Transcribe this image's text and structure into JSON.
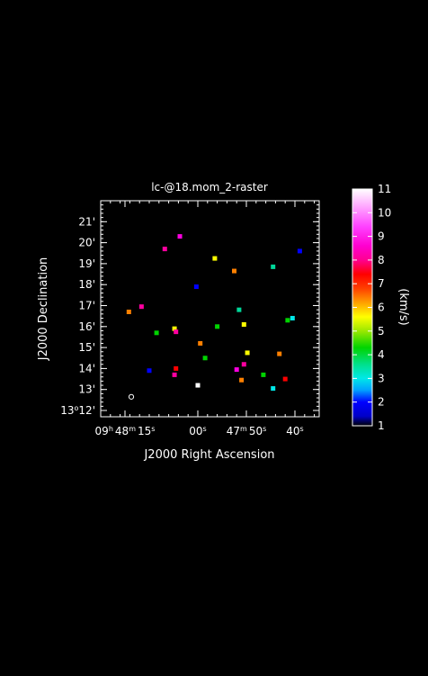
{
  "chart_data": {
    "type": "heatmap",
    "title": "lc-@18.mom_2-raster",
    "xlabel": "J2000 Right Ascension",
    "ylabel": "J2000 Declination",
    "x_ticks": [
      {
        "value": 15,
        "main": "09",
        "main_sup": "h",
        "mid": "48",
        "mid_sup": "m",
        "sec": "15",
        "sec_sup": "s"
      },
      {
        "value": 0,
        "main": "",
        "main_sup": "",
        "mid": "",
        "mid_sup": "",
        "sec": "00",
        "sec_sup": "s"
      },
      {
        "value": -10,
        "main": "",
        "main_sup": "",
        "mid": "47",
        "mid_sup": "m",
        "sec": "50",
        "sec_sup": "s"
      },
      {
        "value": -20,
        "main": "",
        "main_sup": "",
        "mid": "",
        "mid_sup": "",
        "sec": "40",
        "sec_sup": "s"
      }
    ],
    "x_range": [
      20,
      -25
    ],
    "y_ticks": [
      {
        "value": 12,
        "deg": "13",
        "deg_sup": "o",
        "min": "12'"
      },
      {
        "value": 13,
        "deg": "",
        "deg_sup": "",
        "min": "13'"
      },
      {
        "value": 14,
        "deg": "",
        "deg_sup": "",
        "min": "14'"
      },
      {
        "value": 15,
        "deg": "",
        "deg_sup": "",
        "min": "15'"
      },
      {
        "value": 16,
        "deg": "",
        "deg_sup": "",
        "min": "16'"
      },
      {
        "value": 17,
        "deg": "",
        "deg_sup": "",
        "min": "17'"
      },
      {
        "value": 18,
        "deg": "",
        "deg_sup": "",
        "min": "18'"
      },
      {
        "value": 19,
        "deg": "",
        "deg_sup": "",
        "min": "19'"
      },
      {
        "value": 20,
        "deg": "",
        "deg_sup": "",
        "min": "20'"
      },
      {
        "value": 21,
        "deg": "",
        "deg_sup": "",
        "min": "21'"
      }
    ],
    "y_range": [
      11.7,
      22.0
    ],
    "colorbar": {
      "label": "(km/s)",
      "range": [
        1,
        11
      ],
      "ticks": [
        "1",
        "2",
        "3",
        "4",
        "5",
        "6",
        "7",
        "8",
        "9",
        "10",
        "11"
      ]
    },
    "points": [
      {
        "x": 3.7,
        "y": 20.3,
        "v": 9
      },
      {
        "x": 6.8,
        "y": 19.7,
        "v": 8
      },
      {
        "x": -3.5,
        "y": 19.25,
        "v": 5
      },
      {
        "x": -7.5,
        "y": 18.65,
        "v": 6
      },
      {
        "x": -15.5,
        "y": 18.85,
        "v": 3
      },
      {
        "x": -21.0,
        "y": 19.6,
        "v": 1
      },
      {
        "x": 0.3,
        "y": 17.9,
        "v": 1
      },
      {
        "x": 11.6,
        "y": 16.95,
        "v": 8
      },
      {
        "x": 14.2,
        "y": 16.7,
        "v": 6
      },
      {
        "x": 8.5,
        "y": 15.7,
        "v": 4
      },
      {
        "x": 4.8,
        "y": 15.9,
        "v": 5
      },
      {
        "x": 4.5,
        "y": 15.75,
        "v": 8
      },
      {
        "x": -4.0,
        "y": 16.0,
        "v": 4
      },
      {
        "x": -8.5,
        "y": 16.8,
        "v": 3
      },
      {
        "x": -9.5,
        "y": 16.1,
        "v": 5
      },
      {
        "x": -18.5,
        "y": 16.3,
        "v": 4
      },
      {
        "x": -19.5,
        "y": 16.4,
        "v": 2
      },
      {
        "x": -0.5,
        "y": 15.2,
        "v": 6
      },
      {
        "x": -10.2,
        "y": 14.75,
        "v": 5
      },
      {
        "x": -16.8,
        "y": 14.7,
        "v": 6
      },
      {
        "x": -1.5,
        "y": 14.5,
        "v": 4
      },
      {
        "x": -8.0,
        "y": 13.95,
        "v": 9
      },
      {
        "x": -9.5,
        "y": 14.2,
        "v": 8
      },
      {
        "x": -13.5,
        "y": 13.7,
        "v": 4
      },
      {
        "x": -9.0,
        "y": 13.45,
        "v": 6
      },
      {
        "x": -18.0,
        "y": 13.5,
        "v": 7
      },
      {
        "x": -15.5,
        "y": 13.05,
        "v": 2
      },
      {
        "x": 0.0,
        "y": 13.2,
        "v": 11
      },
      {
        "x": 4.5,
        "y": 14.0,
        "v": 7
      },
      {
        "x": 4.8,
        "y": 13.7,
        "v": 8
      },
      {
        "x": 10.0,
        "y": 13.9,
        "v": 1
      }
    ],
    "beam": {
      "x": 13.7,
      "y": 12.65
    }
  }
}
